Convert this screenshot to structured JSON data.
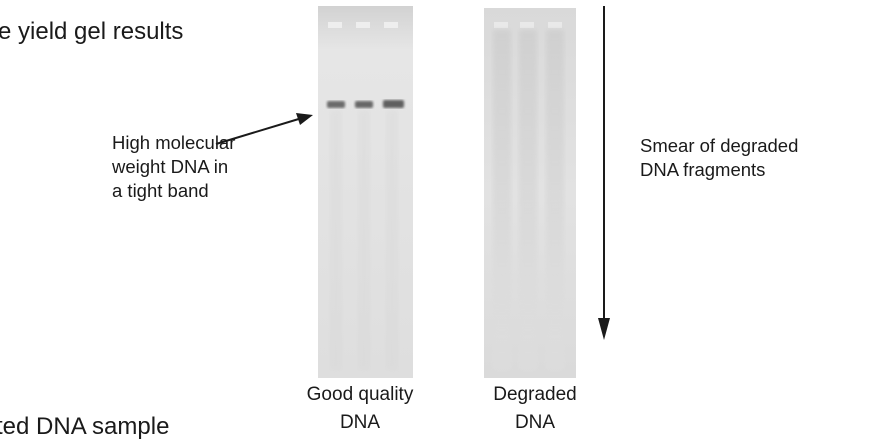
{
  "heading": "e yield gel results",
  "annotation_left": [
    "High molecular",
    "weight DNA in",
    "a tight band"
  ],
  "annotation_right": [
    "Smear of degraded",
    "DNA fragments"
  ],
  "lanes": [
    {
      "caption": [
        "Good quality",
        "DNA"
      ]
    },
    {
      "caption": [
        "Degraded",
        "DNA"
      ]
    }
  ],
  "bottom_fragment": "ted DNA sample",
  "colors": {
    "gel_background": "#dcdcdc",
    "band": "#6a6a6a",
    "ink": "#1a1a1a"
  }
}
